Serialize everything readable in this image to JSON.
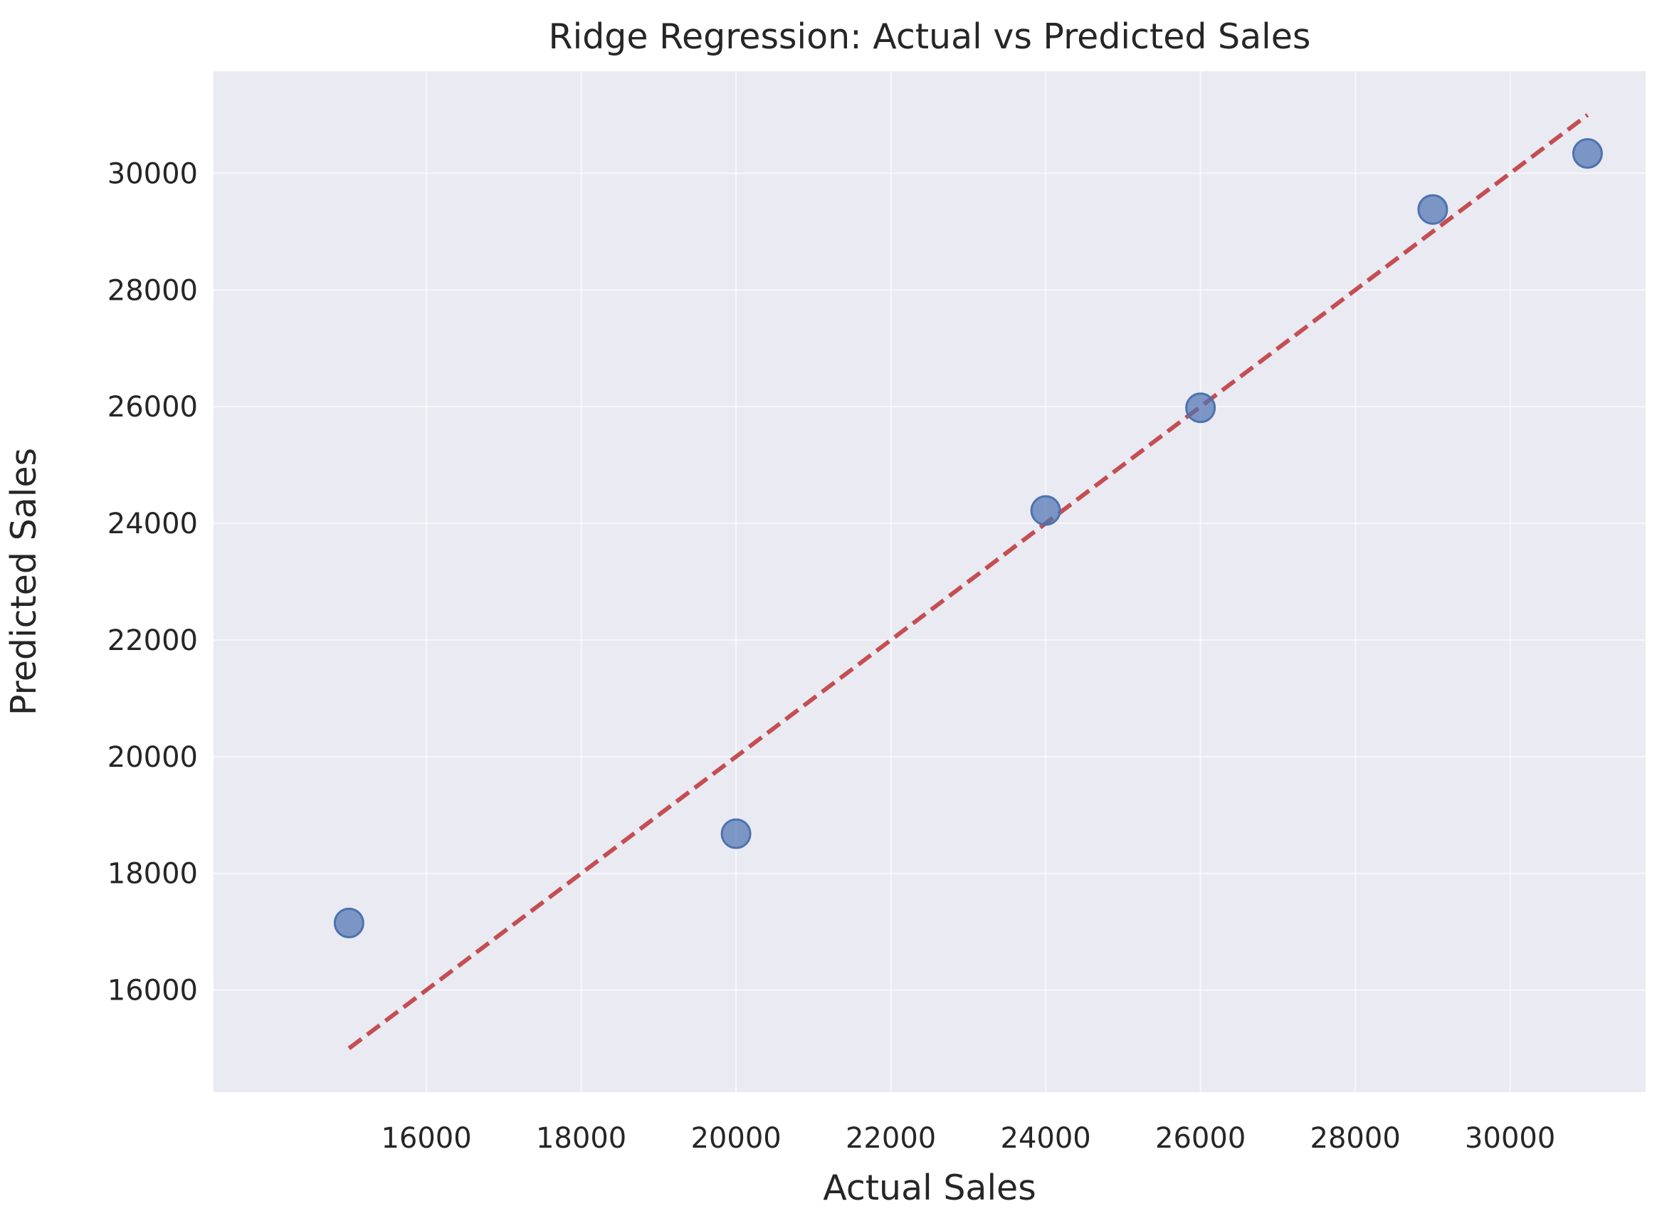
{
  "chart_data": {
    "type": "scatter",
    "title": "Ridge Regression: Actual vs Predicted Sales",
    "xlabel": "Actual Sales",
    "ylabel": "Predicted Sales",
    "xlim": [
      13250,
      31750
    ],
    "ylim": [
      14250,
      31750
    ],
    "xticks": [
      16000,
      18000,
      20000,
      22000,
      24000,
      26000,
      28000,
      30000
    ],
    "yticks": [
      16000,
      18000,
      20000,
      22000,
      24000,
      26000,
      28000,
      30000
    ],
    "grid": true,
    "points": [
      {
        "x": 15000,
        "y": 17150
      },
      {
        "x": 20000,
        "y": 18680
      },
      {
        "x": 24000,
        "y": 24220
      },
      {
        "x": 26000,
        "y": 25980
      },
      {
        "x": 29000,
        "y": 29380
      },
      {
        "x": 31000,
        "y": 30340
      }
    ],
    "reference_line": {
      "x": [
        15000,
        31000
      ],
      "y": [
        15000,
        31000
      ],
      "style": "dashed"
    },
    "colors": {
      "background": "#eaeaf2",
      "grid": "#ffffff",
      "points": "#4c72b0",
      "line": "#c44e52",
      "text": "#262626"
    }
  }
}
